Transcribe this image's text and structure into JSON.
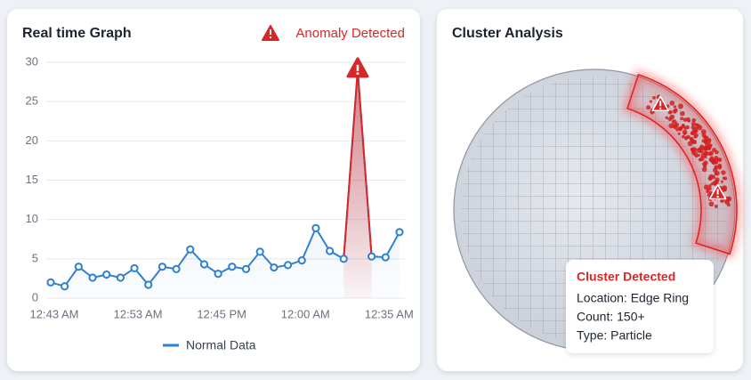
{
  "chart_data": {
    "type": "line",
    "title": "Real time Graph",
    "annotation": "Anomaly Detected",
    "categories": [
      "12:43 AM",
      null,
      null,
      null,
      null,
      null,
      "12:53 AM",
      null,
      null,
      null,
      null,
      null,
      "12:45 PM",
      null,
      null,
      null,
      null,
      null,
      "12:00 AM",
      null,
      null,
      null,
      null,
      null,
      "12:35 AM",
      null
    ],
    "series": [
      {
        "name": "Normal Data",
        "color": "#2f80d1",
        "values": [
          2,
          1.5,
          4,
          2.6,
          3,
          2.6,
          3.8,
          1.7,
          4,
          3.7,
          6.2,
          4.3,
          3.1,
          4,
          3.7,
          5.9,
          3.9,
          4.2,
          4.8,
          8.9,
          6,
          5,
          29,
          5.3,
          5.2,
          8.4
        ]
      }
    ],
    "anomaly_index": 22,
    "anomaly_color": "#d62828",
    "ylim": [
      0,
      30
    ],
    "yticks": [
      0,
      5,
      10,
      15,
      20,
      25,
      30
    ],
    "grid": true
  },
  "cluster_panel": {
    "title": "Cluster Analysis",
    "callout": {
      "title": "Cluster Detected",
      "lines": [
        "Location: Edge Ring",
        "Count: 150+",
        "Type: Particle"
      ]
    }
  }
}
